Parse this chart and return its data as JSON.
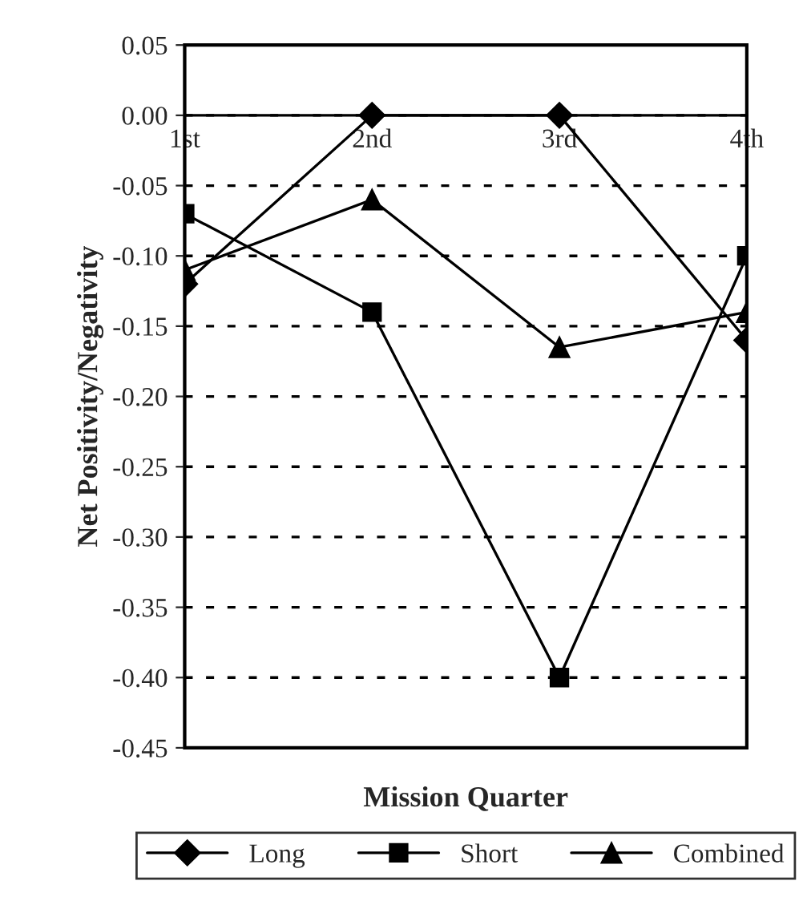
{
  "chart_data": {
    "type": "line",
    "xlabel": "Mission Quarter",
    "ylabel": "Net Positivity/Negativity",
    "categories": [
      "1st",
      "2nd",
      "3rd",
      "4th"
    ],
    "series": [
      {
        "name": "Long",
        "color": "#000000",
        "marker": "diamond",
        "values": [
          -0.12,
          0.0,
          0.0,
          -0.16
        ]
      },
      {
        "name": "Short",
        "color": "#000000",
        "marker": "square",
        "values": [
          -0.07,
          -0.14,
          -0.4,
          -0.1
        ]
      },
      {
        "name": "Combined",
        "color": "#000000",
        "marker": "triangle",
        "values": [
          -0.11,
          -0.06,
          -0.165,
          -0.14
        ]
      }
    ],
    "ylim": [
      -0.45,
      0.05
    ],
    "yticks": [
      {
        "value": 0.05,
        "label": "0.05"
      },
      {
        "value": 0.0,
        "label": "0.00"
      },
      {
        "value": -0.05,
        "label": "-0.05"
      },
      {
        "value": -0.1,
        "label": "-0.10"
      },
      {
        "value": -0.15,
        "label": "-0.15"
      },
      {
        "value": -0.2,
        "label": "-0.20"
      },
      {
        "value": -0.25,
        "label": "-0.25"
      },
      {
        "value": -0.3,
        "label": "-0.30"
      },
      {
        "value": -0.35,
        "label": "-0.35"
      },
      {
        "value": -0.4,
        "label": "-0.40"
      },
      {
        "value": -0.45,
        "label": "-0.45"
      }
    ],
    "grid": "y",
    "legend": "bottom",
    "line_style": "solid"
  }
}
